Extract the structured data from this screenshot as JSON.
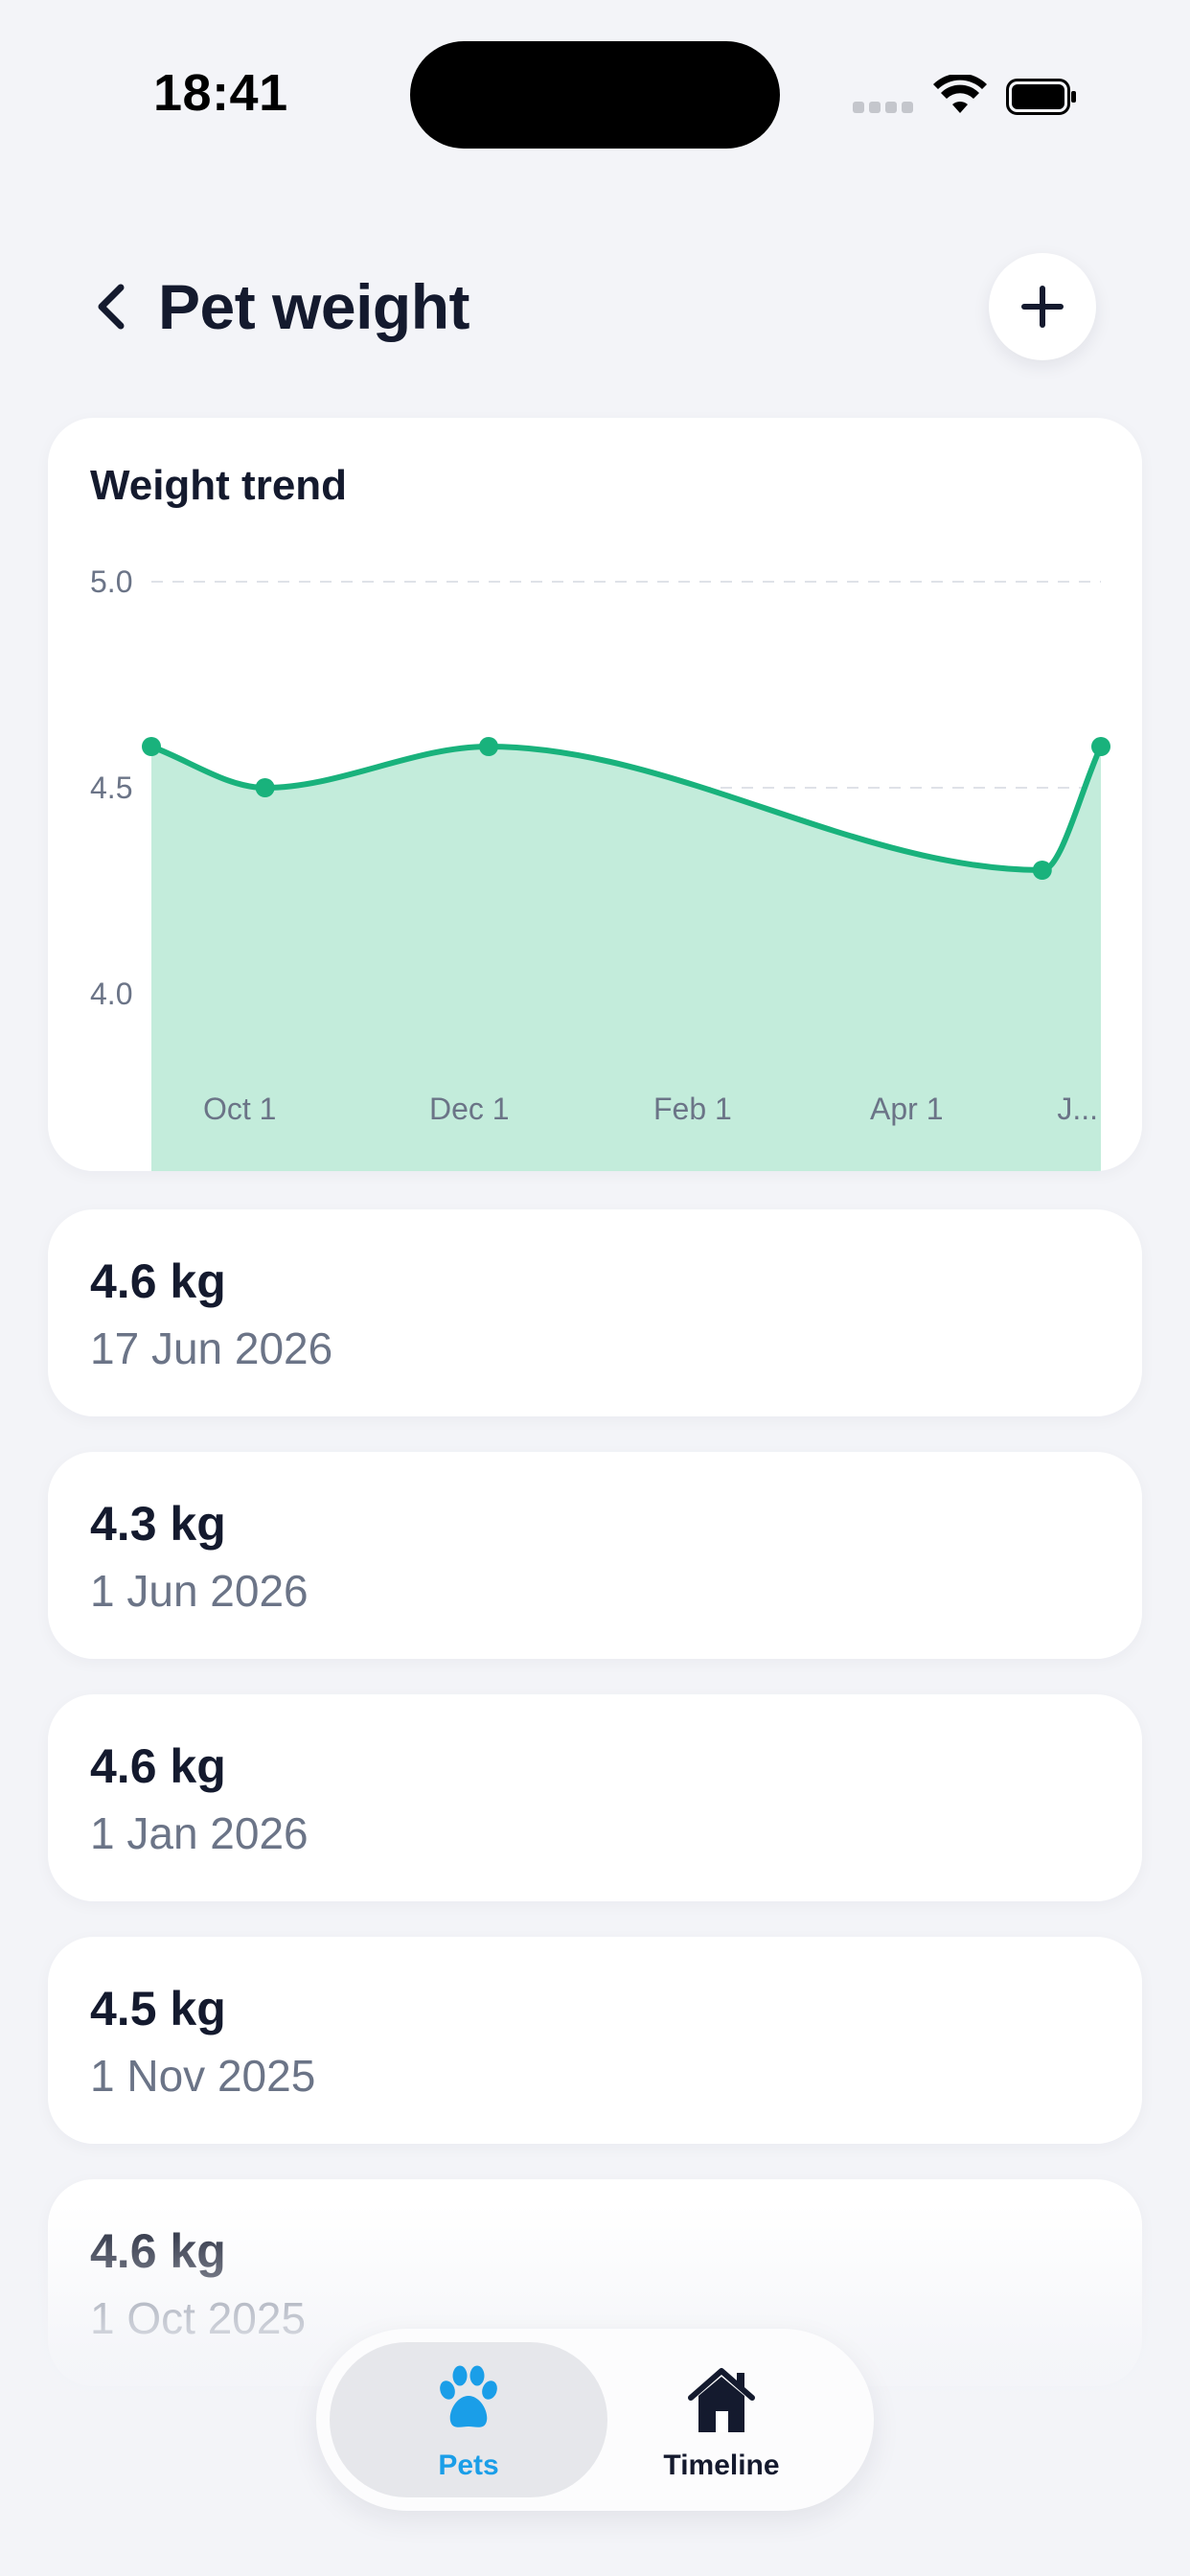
{
  "status_bar": {
    "time": "18:41"
  },
  "header": {
    "title": "Pet weight"
  },
  "chart_data": {
    "type": "area",
    "title": "Weight trend",
    "xlabel": "",
    "ylabel": "",
    "x": [
      "2025-10-01",
      "2025-11-01",
      "2026-01-01",
      "2026-06-01",
      "2026-06-17"
    ],
    "series": [
      {
        "values": [
          4.6,
          4.5,
          4.6,
          4.3,
          4.6
        ]
      }
    ],
    "ylim": [
      3.75,
      5.0
    ],
    "yticks": [
      "5.0",
      "4.5",
      "4.0"
    ],
    "xticks": [
      "Oct 1",
      "Dec 1",
      "Feb 1",
      "Apr 1",
      "J..."
    ],
    "grid": true,
    "colors": {
      "line": "#19b27c",
      "fill": "#c3ecdb",
      "grid": "#dfe2e8"
    }
  },
  "entries": [
    {
      "weight": "4.6 kg",
      "date": "17 Jun 2026"
    },
    {
      "weight": "4.3 kg",
      "date": "1 Jun 2026"
    },
    {
      "weight": "4.6 kg",
      "date": "1 Jan 2026"
    },
    {
      "weight": "4.5 kg",
      "date": "1 Nov 2025"
    },
    {
      "weight": "4.6 kg",
      "date": "1 Oct 2025"
    }
  ],
  "tabs": [
    {
      "label": "Pets",
      "icon": "paw-icon",
      "active": true
    },
    {
      "label": "Timeline",
      "icon": "house-icon",
      "active": false
    }
  ],
  "colors": {
    "accent": "#1a9ee8",
    "background": "#f3f4f8"
  }
}
